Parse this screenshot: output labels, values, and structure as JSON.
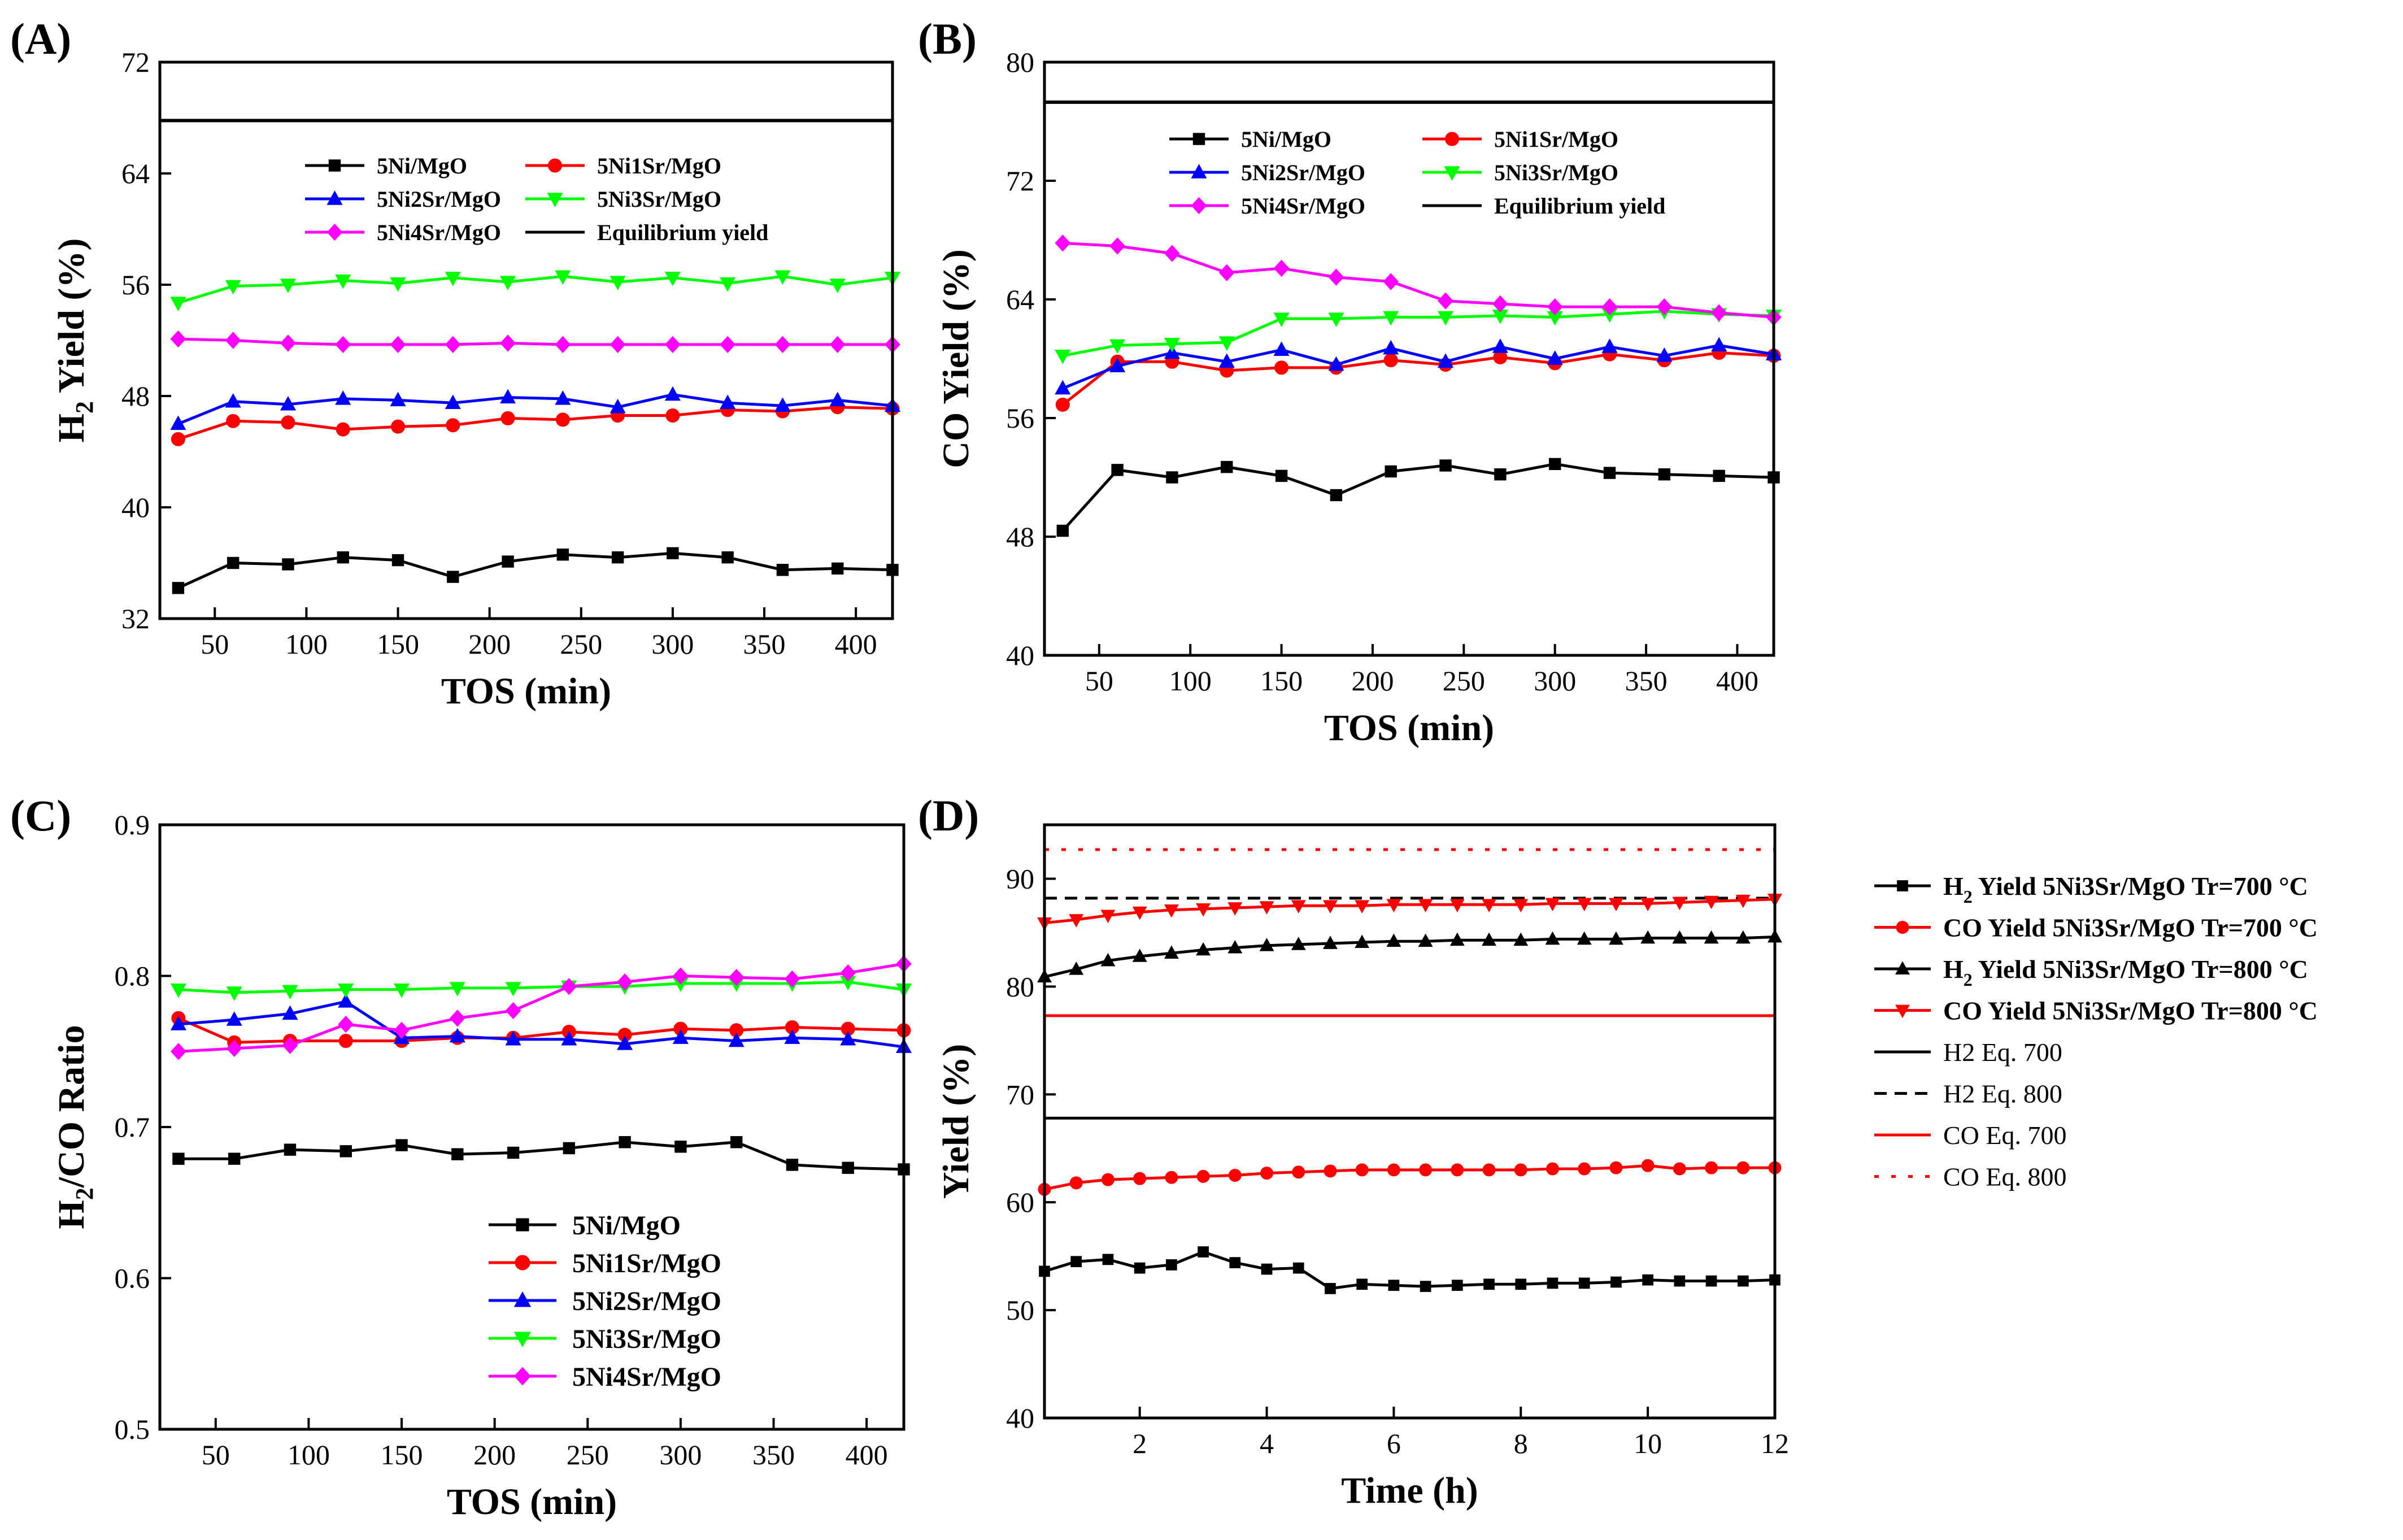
{
  "colors": {
    "5Ni/MgO": "#000000",
    "5Ni1Sr/MgO": "#ff0000",
    "5Ni2Sr/MgO": "#0000ff",
    "5Ni3Sr/MgO": "#00ff00",
    "5Ni4Sr/MgO": "#ff00ff",
    "Equilibrium yield": "#000000"
  },
  "chart_data": [
    {
      "id": "A",
      "panel_label": "(A)",
      "type": "line",
      "xlabel": "TOS (min)",
      "ylabel_main": "H",
      "ylabel_sub": "2",
      "ylabel_rest": " Yield (%)",
      "xlim": [
        20,
        420
      ],
      "ylim": [
        32,
        72
      ],
      "xticks": [
        50,
        100,
        150,
        200,
        250,
        300,
        350,
        400
      ],
      "yticks": [
        32,
        40,
        48,
        56,
        64,
        72
      ],
      "legend": {
        "columns": 2,
        "entries": [
          "5Ni/MgO",
          "5Ni1Sr/MgO",
          "5Ni2Sr/MgO",
          "5Ni3Sr/MgO",
          "5Ni4Sr/MgO",
          "Equilibrium yield"
        ]
      },
      "equilibrium": {
        "name": "Equilibrium yield",
        "value": 67.8,
        "x": [
          20,
          420
        ]
      },
      "x": [
        30,
        60,
        90,
        120,
        150,
        180,
        210,
        240,
        270,
        300,
        330,
        360,
        390,
        420
      ],
      "series": [
        {
          "name": "5Ni/MgO",
          "marker": "square",
          "values": [
            34.2,
            36.0,
            35.9,
            36.4,
            36.2,
            35.0,
            36.1,
            36.6,
            36.4,
            36.7,
            36.4,
            35.5,
            35.6,
            35.5
          ]
        },
        {
          "name": "5Ni1Sr/MgO",
          "marker": "circle",
          "values": [
            44.9,
            46.2,
            46.1,
            45.6,
            45.8,
            45.9,
            46.4,
            46.3,
            46.6,
            46.6,
            47.0,
            46.9,
            47.2,
            47.1
          ]
        },
        {
          "name": "5Ni2Sr/MgO",
          "marker": "triangle-up",
          "values": [
            46.0,
            47.6,
            47.4,
            47.8,
            47.7,
            47.5,
            47.9,
            47.8,
            47.2,
            48.1,
            47.5,
            47.3,
            47.7,
            47.3
          ]
        },
        {
          "name": "5Ni3Sr/MgO",
          "marker": "triangle-down",
          "values": [
            54.7,
            55.9,
            56.0,
            56.3,
            56.1,
            56.5,
            56.2,
            56.6,
            56.2,
            56.5,
            56.1,
            56.6,
            56.0,
            56.5
          ]
        },
        {
          "name": "5Ni4Sr/MgO",
          "marker": "diamond",
          "values": [
            52.1,
            52.0,
            51.8,
            51.7,
            51.7,
            51.7,
            51.8,
            51.7,
            51.7,
            51.7,
            51.7,
            51.7,
            51.7,
            51.7
          ]
        }
      ]
    },
    {
      "id": "B",
      "panel_label": "(B)",
      "type": "line",
      "xlabel": "TOS (min)",
      "ylabel_main": "CO Yield (%)",
      "ylabel_sub": "",
      "ylabel_rest": "",
      "xlim": [
        20,
        420
      ],
      "ylim": [
        40,
        80
      ],
      "xticks": [
        50,
        100,
        150,
        200,
        250,
        300,
        350,
        400
      ],
      "yticks": [
        40,
        48,
        56,
        64,
        72,
        80
      ],
      "legend": {
        "columns": 2,
        "entries": [
          "5Ni/MgO",
          "5Ni1Sr/MgO",
          "5Ni2Sr/MgO",
          "5Ni3Sr/MgO",
          "5Ni4Sr/MgO",
          "Equilibrium yield"
        ]
      },
      "equilibrium": {
        "name": "Equilibrium yield",
        "value": 77.3,
        "x": [
          20,
          420
        ]
      },
      "x": [
        30,
        60,
        90,
        120,
        150,
        180,
        210,
        240,
        270,
        300,
        330,
        360,
        390,
        420
      ],
      "series": [
        {
          "name": "5Ni/MgO",
          "marker": "square",
          "values": [
            48.4,
            52.5,
            52.0,
            52.7,
            52.1,
            50.8,
            52.4,
            52.8,
            52.2,
            52.9,
            52.3,
            52.2,
            52.1,
            52.0
          ]
        },
        {
          "name": "5Ni1Sr/MgO",
          "marker": "circle",
          "values": [
            56.9,
            59.8,
            59.8,
            59.2,
            59.4,
            59.4,
            59.9,
            59.6,
            60.1,
            59.7,
            60.3,
            59.9,
            60.4,
            60.2
          ]
        },
        {
          "name": "5Ni2Sr/MgO",
          "marker": "triangle-up",
          "values": [
            58.0,
            59.5,
            60.4,
            59.8,
            60.6,
            59.6,
            60.7,
            59.8,
            60.8,
            60.0,
            60.8,
            60.2,
            60.9,
            60.3
          ]
        },
        {
          "name": "5Ni3Sr/MgO",
          "marker": "triangle-down",
          "values": [
            60.2,
            60.9,
            61.0,
            61.1,
            62.7,
            62.7,
            62.8,
            62.8,
            62.9,
            62.8,
            63.0,
            63.2,
            63.0,
            62.9
          ]
        },
        {
          "name": "5Ni4Sr/MgO",
          "marker": "diamond",
          "values": [
            67.8,
            67.6,
            67.1,
            65.8,
            66.1,
            65.5,
            65.2,
            63.9,
            63.7,
            63.5,
            63.5,
            63.5,
            63.1,
            62.8
          ]
        }
      ]
    },
    {
      "id": "C",
      "panel_label": "(C)",
      "type": "line",
      "xlabel": "TOS (min)",
      "ylabel_main": "H",
      "ylabel_sub": "2",
      "ylabel_rest": "/CO Ratio",
      "xlim": [
        20,
        420
      ],
      "ylim": [
        0.5,
        0.9
      ],
      "xticks": [
        50,
        100,
        150,
        200,
        250,
        300,
        350,
        400
      ],
      "yticks": [
        0.5,
        0.6,
        0.7,
        0.8,
        0.9
      ],
      "legend": {
        "columns": 1,
        "entries": [
          "5Ni/MgO",
          "5Ni1Sr/MgO",
          "5Ni2Sr/MgO",
          "5Ni3Sr/MgO",
          "5Ni4Sr/MgO"
        ]
      },
      "x": [
        30,
        60,
        90,
        120,
        150,
        180,
        210,
        240,
        270,
        300,
        330,
        360,
        390,
        420
      ],
      "series": [
        {
          "name": "5Ni/MgO",
          "marker": "square",
          "values": [
            0.679,
            0.679,
            0.685,
            0.684,
            0.688,
            0.682,
            0.683,
            0.686,
            0.69,
            0.687,
            0.69,
            0.675,
            0.673,
            0.672
          ]
        },
        {
          "name": "5Ni1Sr/MgO",
          "marker": "circle",
          "values": [
            0.772,
            0.756,
            0.757,
            0.757,
            0.757,
            0.759,
            0.759,
            0.763,
            0.761,
            0.765,
            0.764,
            0.766,
            0.765,
            0.764
          ]
        },
        {
          "name": "5Ni2Sr/MgO",
          "marker": "triangle-up",
          "values": [
            0.768,
            0.771,
            0.775,
            0.783,
            0.759,
            0.76,
            0.758,
            0.758,
            0.755,
            0.759,
            0.757,
            0.759,
            0.758,
            0.753
          ]
        },
        {
          "name": "5Ni3Sr/MgO",
          "marker": "triangle-down",
          "values": [
            0.791,
            0.789,
            0.79,
            0.791,
            0.791,
            0.792,
            0.792,
            0.793,
            0.793,
            0.795,
            0.795,
            0.795,
            0.796,
            0.791
          ]
        },
        {
          "name": "5Ni4Sr/MgO",
          "marker": "diamond",
          "values": [
            0.75,
            0.752,
            0.754,
            0.768,
            0.764,
            0.772,
            0.777,
            0.793,
            0.796,
            0.8,
            0.799,
            0.798,
            0.802,
            0.808
          ]
        }
      ]
    },
    {
      "id": "D",
      "panel_label": "(D)",
      "type": "line",
      "xlabel": "Time (h)",
      "ylabel_main": "Yield (%)",
      "ylabel_sub": "",
      "ylabel_rest": "",
      "xlim": [
        0.5,
        12
      ],
      "ylim": [
        40,
        95
      ],
      "xticks": [
        2,
        4,
        6,
        8,
        10,
        12
      ],
      "yticks": [
        40,
        50,
        60,
        70,
        80,
        90
      ],
      "legend": {
        "entries": [
          {
            "pre": "H",
            "sub": "2",
            "post": "  Yield 5Ni3Sr/MgO Tr=700 °C",
            "marker": "square",
            "color": "#000000",
            "style": "solid",
            "bold": true
          },
          {
            "pre": "CO Yield 5Ni3Sr/MgO Tr=700 °C",
            "sub": "",
            "post": "",
            "marker": "circle",
            "color": "#ff0000",
            "style": "solid",
            "bold": true
          },
          {
            "pre": "H",
            "sub": "2",
            "post": "  Yield 5Ni3Sr/MgO Tr=800 °C",
            "marker": "triangle-up",
            "color": "#000000",
            "style": "solid",
            "bold": true
          },
          {
            "pre": "CO Yield 5Ni3Sr/MgO Tr=800 °C",
            "sub": "",
            "post": "",
            "marker": "triangle-down",
            "color": "#ff0000",
            "style": "solid",
            "bold": true
          },
          {
            "pre": "H2 Eq. 700",
            "sub": "",
            "post": "",
            "marker": "none",
            "color": "#000000",
            "style": "solid",
            "bold": false
          },
          {
            "pre": "H2 Eq. 800",
            "sub": "",
            "post": "",
            "marker": "none",
            "color": "#000000",
            "style": "dashed",
            "bold": false
          },
          {
            "pre": "CO Eq. 700",
            "sub": "",
            "post": "",
            "marker": "none",
            "color": "#ff0000",
            "style": "solid",
            "bold": false
          },
          {
            "pre": "CO Eq. 800",
            "sub": "",
            "post": "",
            "marker": "none",
            "color": "#ff0000",
            "style": "dotted",
            "bold": false
          }
        ]
      },
      "hlines": [
        {
          "name": "H2 Eq. 700",
          "value": 67.8,
          "color": "#000000",
          "style": "solid"
        },
        {
          "name": "H2 Eq. 800",
          "value": 88.2,
          "color": "#000000",
          "style": "dashed"
        },
        {
          "name": "CO Eq. 700",
          "value": 77.3,
          "color": "#ff0000",
          "style": "solid"
        },
        {
          "name": "CO Eq. 800",
          "value": 92.7,
          "color": "#ff0000",
          "style": "dotted"
        }
      ],
      "x": [
        0.5,
        1,
        1.5,
        2,
        2.5,
        3,
        3.5,
        4,
        4.5,
        5,
        5.5,
        6,
        6.5,
        7,
        7.5,
        8,
        8.5,
        9,
        9.5,
        10,
        10.5,
        11,
        11.5,
        12
      ],
      "series": [
        {
          "name": "H2 Yield 5Ni3Sr/MgO Tr=700 °C",
          "marker": "square",
          "color": "#000000",
          "values": [
            53.6,
            54.5,
            54.7,
            53.9,
            54.2,
            55.4,
            54.4,
            53.8,
            53.9,
            52.0,
            52.4,
            52.3,
            52.2,
            52.3,
            52.4,
            52.4,
            52.5,
            52.5,
            52.6,
            52.8,
            52.7,
            52.7,
            52.7,
            52.8
          ]
        },
        {
          "name": "CO Yield 5Ni3Sr/MgO Tr=700 °C",
          "marker": "circle",
          "color": "#ff0000",
          "values": [
            61.2,
            61.8,
            62.1,
            62.2,
            62.3,
            62.4,
            62.5,
            62.7,
            62.8,
            62.9,
            63.0,
            63.0,
            63.0,
            63.0,
            63.0,
            63.0,
            63.1,
            63.1,
            63.2,
            63.4,
            63.1,
            63.2,
            63.2,
            63.2
          ]
        },
        {
          "name": "H2 Yield 5Ni3Sr/MgO Tr=800 °C",
          "marker": "triangle-up",
          "color": "#000000",
          "values": [
            80.9,
            81.6,
            82.4,
            82.8,
            83.1,
            83.4,
            83.6,
            83.8,
            83.9,
            84.0,
            84.1,
            84.2,
            84.2,
            84.3,
            84.3,
            84.3,
            84.4,
            84.4,
            84.4,
            84.5,
            84.5,
            84.5,
            84.5,
            84.6
          ]
        },
        {
          "name": "CO Yield 5Ni3Sr/MgO Tr=800 °C",
          "marker": "triangle-down",
          "color": "#ff0000",
          "values": [
            85.9,
            86.2,
            86.6,
            86.9,
            87.1,
            87.2,
            87.3,
            87.4,
            87.5,
            87.5,
            87.5,
            87.6,
            87.6,
            87.6,
            87.6,
            87.6,
            87.7,
            87.7,
            87.7,
            87.7,
            87.8,
            87.9,
            88.0,
            88.1
          ]
        }
      ]
    }
  ]
}
